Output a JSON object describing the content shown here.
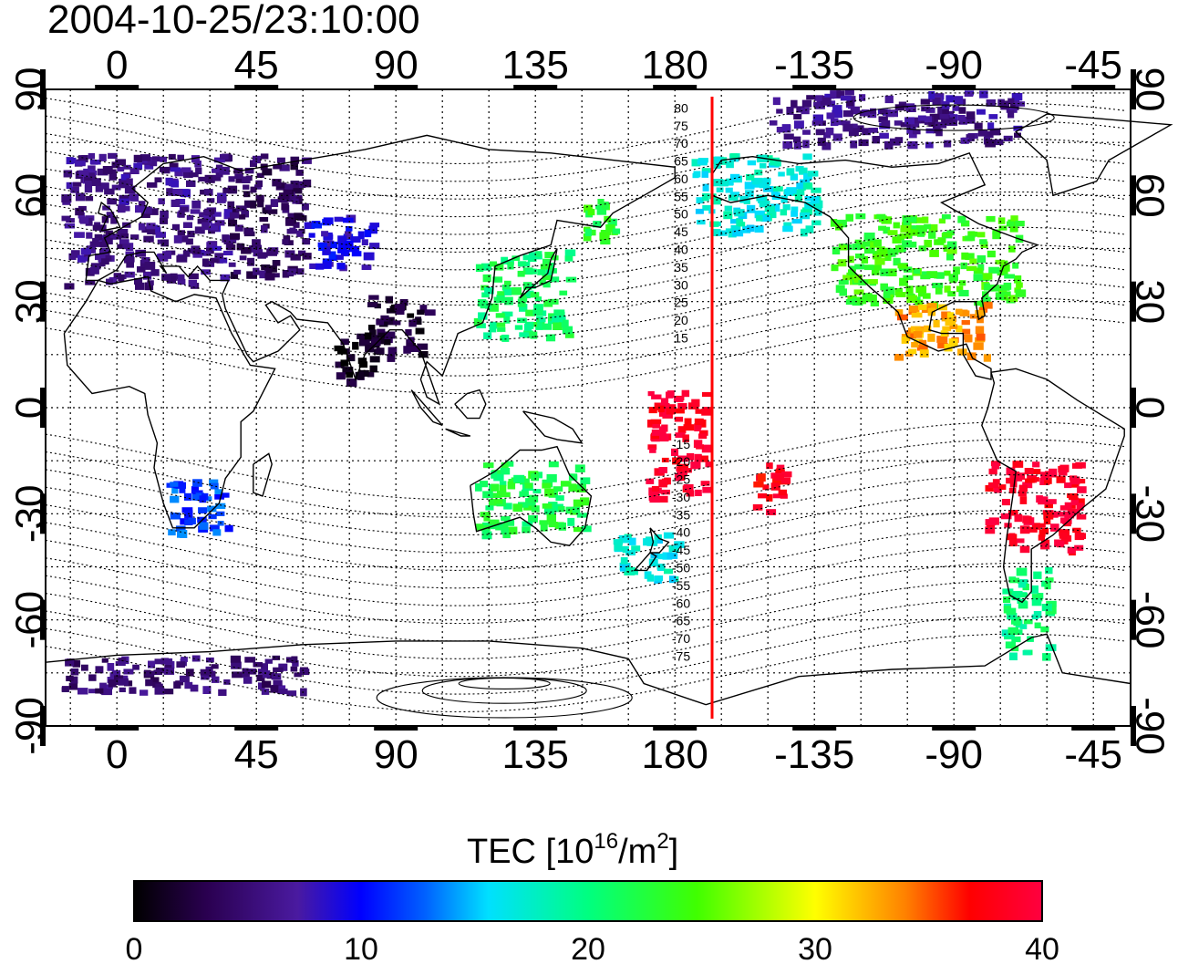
{
  "title": "2004-10-25/23:10:00",
  "axes": {
    "x_top": [
      "0",
      "45",
      "90",
      "135",
      "180",
      "-135",
      "-90",
      "-45"
    ],
    "x_bottom": [
      "0",
      "45",
      "90",
      "135",
      "180",
      "-135",
      "-90",
      "-45"
    ],
    "y_left": [
      "90",
      "60",
      "30",
      "0",
      "-30",
      "-60",
      "-90"
    ],
    "y_right": [
      "90",
      "60",
      "30",
      "0",
      "-30",
      "-60",
      "-90"
    ]
  },
  "colorbar": {
    "label_main": "TEC  [10",
    "label_sup1": "16",
    "label_mid": "/m",
    "label_sup2": "2",
    "label_end": "]",
    "ticks": [
      "0",
      "10",
      "20",
      "30",
      "40"
    ],
    "range": [
      0,
      40
    ]
  },
  "terminator_longitude": 192,
  "contour_labels_north": [
    "80",
    "75",
    "70",
    "65",
    "60",
    "55",
    "50",
    "45",
    "40",
    "35",
    "30",
    "25",
    "20",
    "15"
  ],
  "contour_labels_south": [
    "-15",
    "-20",
    "-25",
    "-30",
    "-35",
    "-40",
    "-45",
    "-50",
    "-55",
    "-60",
    "-65",
    "-70",
    "-75"
  ],
  "colors": {
    "terminator": "#ff0000",
    "frame": "#000000"
  },
  "chart_data": {
    "type": "heatmap",
    "title": "2004-10-25/23:10:00",
    "xlabel": "",
    "ylabel": "",
    "xlim": [
      -23,
      327
    ],
    "ylim": [
      -90,
      90
    ],
    "colorbar_label": "TEC  [10^16/m^2]",
    "color_range": [
      0,
      40
    ],
    "regions": [
      {
        "lon": [
          -18,
          35
        ],
        "lat": [
          35,
          72
        ],
        "tec": 6
      },
      {
        "lon": [
          35,
          60
        ],
        "lat": [
          38,
          72
        ],
        "tec": 4
      },
      {
        "lon": [
          60,
          82
        ],
        "lat": [
          40,
          55
        ],
        "tec": 9
      },
      {
        "lon": [
          80,
          100
        ],
        "lat": [
          15,
          32
        ],
        "tec": 2
      },
      {
        "lon": [
          70,
          82
        ],
        "lat": [
          8,
          22
        ],
        "tec": 1
      },
      {
        "lon": [
          115,
          145
        ],
        "lat": [
          20,
          45
        ],
        "tec": 21
      },
      {
        "lon": [
          150,
          160
        ],
        "lat": [
          45,
          60
        ],
        "tec": 23
      },
      {
        "lon": [
          185,
          225
        ],
        "lat": [
          50,
          72
        ],
        "tec": 17
      },
      {
        "lon": [
          230,
          290
        ],
        "lat": [
          30,
          55
        ],
        "tec": 24
      },
      {
        "lon": [
          250,
          280
        ],
        "lat": [
          15,
          30
        ],
        "tec": 33
      },
      {
        "lon": [
          170,
          190
        ],
        "lat": [
          -25,
          5
        ],
        "tec": 39
      },
      {
        "lon": [
          205,
          215
        ],
        "lat": [
          -30,
          -15
        ],
        "tec": 38
      },
      {
        "lon": [
          280,
          310
        ],
        "lat": [
          -40,
          -15
        ],
        "tec": 39
      },
      {
        "lon": [
          115,
          150
        ],
        "lat": [
          -35,
          -15
        ],
        "tec": 22
      },
      {
        "lon": [
          160,
          180
        ],
        "lat": [
          -48,
          -35
        ],
        "tec": 17
      },
      {
        "lon": [
          15,
          35
        ],
        "lat": [
          -35,
          -20
        ],
        "tec": 12
      },
      {
        "lon": [
          285,
          300
        ],
        "lat": [
          -70,
          -45
        ],
        "tec": 20
      },
      {
        "lon": [
          210,
          290
        ],
        "lat": [
          75,
          90
        ],
        "tec": 6
      },
      {
        "lon": [
          -18,
          60
        ],
        "lat": [
          -80,
          -70
        ],
        "tec": 5
      }
    ]
  }
}
